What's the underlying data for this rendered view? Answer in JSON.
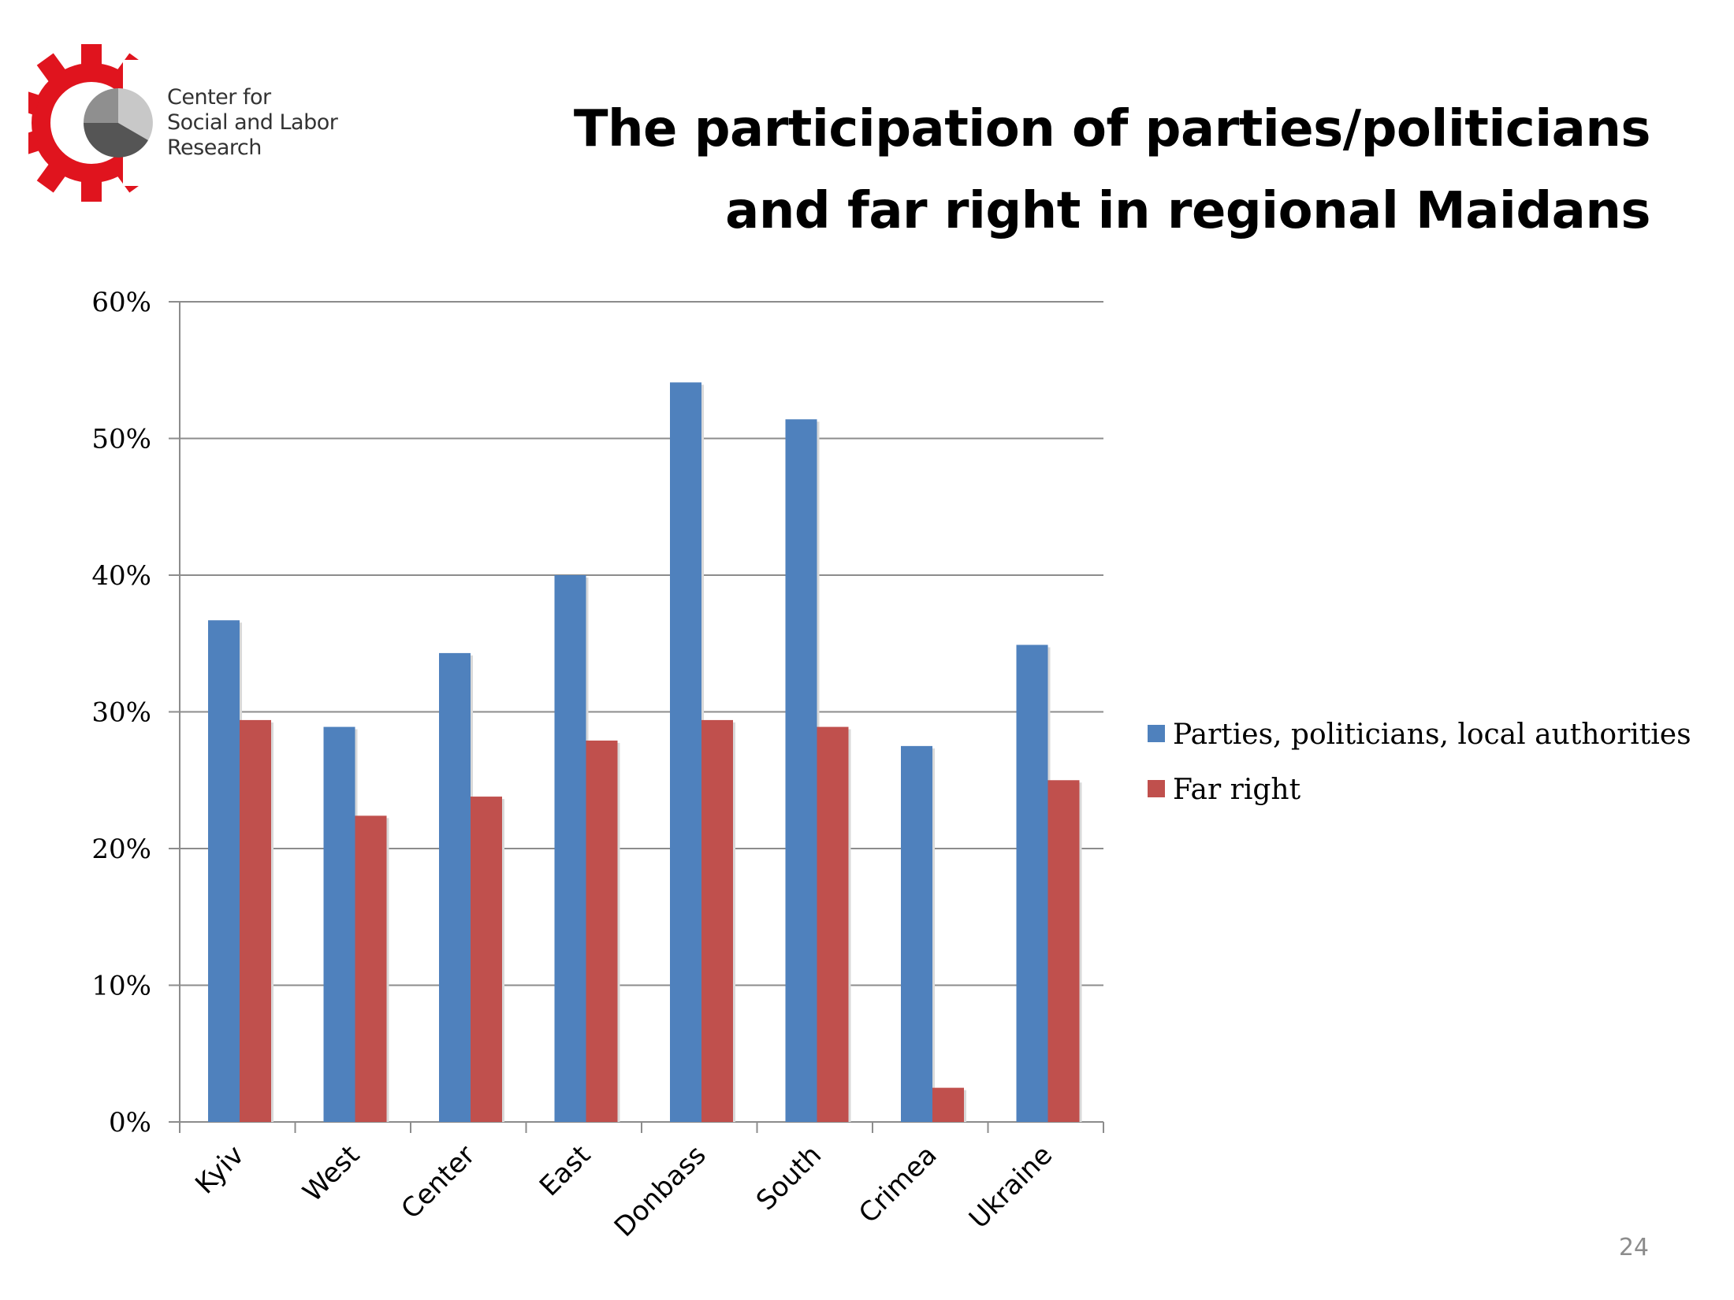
{
  "header": {
    "title_line1": "The participation of parties/politicians",
    "title_line2": "and far right in regional Maidans"
  },
  "logo": {
    "line1": "Center for",
    "line2": "Social and Labor",
    "line3": "Research",
    "gear_color": "#e0141e",
    "icon": "gear-pie-logo-icon"
  },
  "footer": {
    "page_number": "24"
  },
  "chart_data": {
    "type": "bar",
    "title": "",
    "xlabel": "",
    "ylabel": "",
    "categories": [
      "Kyiv",
      "West",
      "Center",
      "East",
      "Donbass",
      "South",
      "Crimea",
      "Ukraine"
    ],
    "series": [
      {
        "name": "Parties, politicians, local authorities",
        "color": "#4f81bd",
        "values": [
          36.7,
          28.9,
          34.3,
          40.0,
          54.1,
          51.4,
          27.5,
          34.9
        ]
      },
      {
        "name": "Far right",
        "color": "#c0504d",
        "values": [
          29.4,
          22.4,
          23.8,
          27.9,
          29.4,
          28.9,
          2.5,
          25.0
        ]
      }
    ],
    "ylim": [
      0,
      60
    ],
    "yticks": [
      0,
      10,
      20,
      30,
      40,
      50,
      60
    ],
    "ytick_labels": [
      "0%",
      "10%",
      "20%",
      "30%",
      "40%",
      "50%",
      "60%"
    ],
    "grid": true,
    "legend_position": "right"
  }
}
